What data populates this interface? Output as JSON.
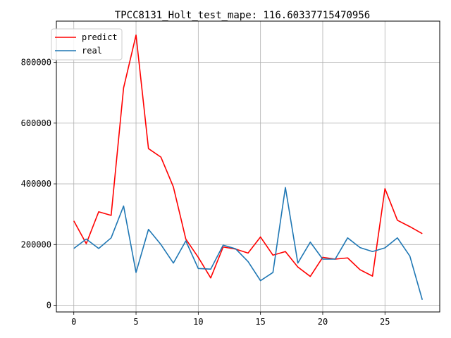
{
  "chart_data": {
    "type": "line",
    "title": "TPCC8131_Holt_test_mape: 116.60337715470956",
    "xlabel": "",
    "ylabel": "",
    "xlim": [
      -1.4,
      29.4
    ],
    "ylim": [
      -22000,
      936000
    ],
    "xticks": [
      0,
      5,
      10,
      15,
      20,
      25
    ],
    "yticks": [
      0,
      200000,
      400000,
      600000,
      800000
    ],
    "grid": true,
    "legend_position": "upper-left",
    "x": [
      0,
      1,
      2,
      3,
      4,
      5,
      6,
      7,
      8,
      9,
      10,
      11,
      12,
      13,
      14,
      15,
      16,
      17,
      18,
      19,
      20,
      21,
      22,
      23,
      24,
      25,
      26,
      27,
      28
    ],
    "series": [
      {
        "name": "predict",
        "color": "#ff0000",
        "values": [
          278000,
          203000,
          308000,
          296000,
          716000,
          890000,
          516000,
          488000,
          390000,
          218000,
          158000,
          90000,
          192000,
          185000,
          172000,
          225000,
          165000,
          177000,
          126000,
          95000,
          158000,
          152000,
          156000,
          117000,
          96000,
          384000,
          280000,
          259000,
          236000
        ]
      },
      {
        "name": "real",
        "color": "#1f77b4",
        "values": [
          187000,
          218000,
          187000,
          222000,
          327000,
          108000,
          250000,
          200000,
          139000,
          212000,
          121000,
          119000,
          198000,
          186000,
          144000,
          81000,
          108000,
          388000,
          139000,
          208000,
          152000,
          152000,
          222000,
          190000,
          177000,
          189000,
          222000,
          162000,
          18000
        ]
      }
    ]
  }
}
